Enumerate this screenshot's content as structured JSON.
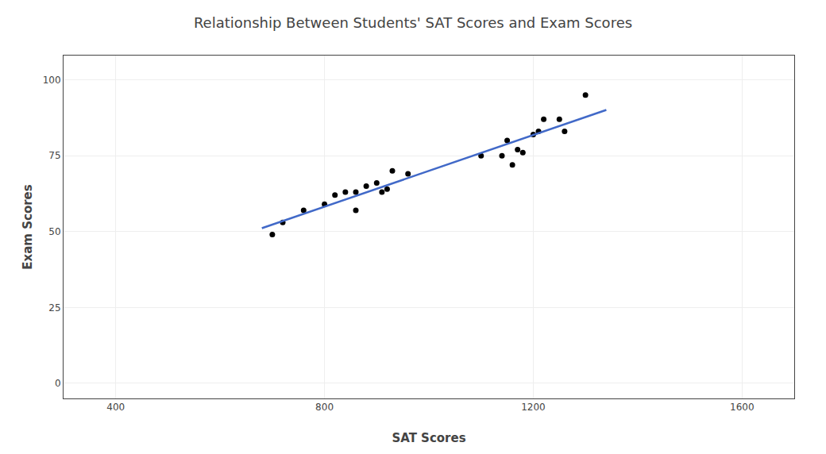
{
  "chart_data": {
    "type": "scatter",
    "title": "Relationship Between Students' SAT Scores and Exam Scores",
    "xlabel": "SAT Scores",
    "ylabel": "Exam Scores",
    "series": [
      {
        "type": "scatter",
        "color": "#000000",
        "marker": "circle",
        "x": [
          700,
          720,
          760,
          800,
          820,
          840,
          860,
          860,
          880,
          900,
          910,
          920,
          930,
          960,
          1100,
          1140,
          1150,
          1160,
          1170,
          1180,
          1200,
          1210,
          1220,
          1250,
          1260,
          1300
        ],
        "values": [
          49,
          53,
          57,
          59,
          62,
          63,
          63,
          57,
          65,
          66,
          63,
          64,
          70,
          69,
          75,
          75,
          80,
          72,
          77,
          76,
          82,
          83,
          87,
          87,
          83,
          95
        ]
      },
      {
        "type": "line",
        "color": "#4169c8",
        "line_style": "solid",
        "x": [
          680,
          1340
        ],
        "values": [
          51.10338,
          90.09235
        ]
      }
    ],
    "xlim": [
      300,
      1700
    ],
    "ylim": [
      -5,
      108
    ],
    "xticks": [
      400,
      800,
      1200,
      1600
    ],
    "yticks": [
      0,
      25,
      50,
      75,
      100
    ],
    "grid": true
  }
}
